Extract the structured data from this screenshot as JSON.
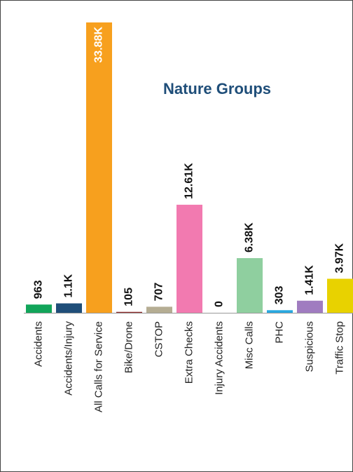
{
  "chart_data": {
    "type": "bar",
    "title": "Nature Groups",
    "categories": [
      "Accidents",
      "Accidents/Injury",
      "All Calls for Service",
      "Bike/Drone",
      "CSTOP",
      "Extra Checks",
      "Injury Accidents",
      "Misc Calls",
      "PHC",
      "Suspicious",
      "Traffic Stop"
    ],
    "values": [
      963,
      1100,
      33880,
      105,
      707,
      12610,
      0,
      6380,
      303,
      1410,
      3970
    ],
    "value_labels": [
      "963",
      "1.1K",
      "33.88K",
      "105",
      "707",
      "12.61K",
      "0",
      "6.38K",
      "303",
      "1.41K",
      "3.97K"
    ],
    "colors": [
      "#12a55a",
      "#1f4e79",
      "#f7a01e",
      "#8b2a2a",
      "#b5ad93",
      "#f27ab0",
      "#999999",
      "#8fcf9f",
      "#29a8e0",
      "#a07cc0",
      "#e8d200"
    ]
  }
}
